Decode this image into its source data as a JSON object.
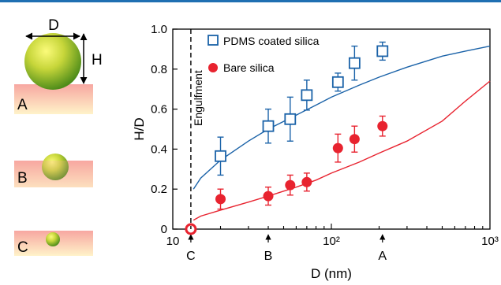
{
  "colors": {
    "accent_bar": "#1f6fb2",
    "pdms": "#1a62a8",
    "bare": "#e8232f",
    "substrate_top": "#f7a7a1",
    "substrate_bottom": "#fff3c9",
    "sphere_light": "#fbfb7a",
    "sphere_dark": "#4c8b19"
  },
  "schematic": {
    "labels": {
      "a": "A",
      "b": "B",
      "c": "C"
    },
    "dimension_d": "D",
    "dimension_h": "H"
  },
  "chart_data": {
    "type": "scatter",
    "ylabel": "H/D",
    "xlabel": "D (nm)",
    "x_scale": "log",
    "xlim": [
      10,
      1000
    ],
    "ylim": [
      0,
      1.0
    ],
    "y_ticks": [
      0,
      0.2,
      0.4,
      0.6,
      0.8,
      1.0
    ],
    "y_tick_labels": [
      "0",
      "0.2",
      "0.4",
      "0.6",
      "0.8",
      "1.0"
    ],
    "x_tick_labels": [
      "10",
      "10²",
      "10³"
    ],
    "grid": false,
    "legend_position": "top-left",
    "engulfment": {
      "x": 13,
      "label": "Engulfment"
    },
    "markers": [
      {
        "x": 13,
        "label": "C"
      },
      {
        "x": 40,
        "label": "B"
      },
      {
        "x": 210,
        "label": "A"
      }
    ],
    "series": [
      {
        "name": "PDMS coated silica",
        "marker": "open-square",
        "points": [
          {
            "x": 20,
            "y": 0.365,
            "err": 0.095
          },
          {
            "x": 40,
            "y": 0.515,
            "err": 0.085
          },
          {
            "x": 55,
            "y": 0.55,
            "err": 0.11
          },
          {
            "x": 70,
            "y": 0.67,
            "err": 0.075
          },
          {
            "x": 110,
            "y": 0.735,
            "err": 0.045
          },
          {
            "x": 140,
            "y": 0.83,
            "err": 0.085
          },
          {
            "x": 210,
            "y": 0.89,
            "err": 0.045
          }
        ],
        "fit": {
          "x": [
            13.5,
            15,
            20,
            30,
            40,
            60,
            80,
            100,
            150,
            200,
            300,
            500,
            700,
            1000
          ],
          "y": [
            0.2,
            0.255,
            0.345,
            0.44,
            0.5,
            0.57,
            0.62,
            0.66,
            0.72,
            0.76,
            0.81,
            0.865,
            0.89,
            0.915
          ]
        }
      },
      {
        "name": "Bare silica",
        "marker": "filled-circle",
        "points": [
          {
            "x": 20,
            "y": 0.15,
            "err": 0.05
          },
          {
            "x": 40,
            "y": 0.165,
            "err": 0.045
          },
          {
            "x": 55,
            "y": 0.22,
            "err": 0.05
          },
          {
            "x": 70,
            "y": 0.235,
            "err": 0.045
          },
          {
            "x": 110,
            "y": 0.405,
            "err": 0.07
          },
          {
            "x": 140,
            "y": 0.45,
            "err": 0.065
          },
          {
            "x": 210,
            "y": 0.515,
            "err": 0.05
          }
        ],
        "fit": {
          "x": [
            13.5,
            15,
            20,
            30,
            40,
            60,
            80,
            100,
            150,
            200,
            300,
            500,
            700,
            1000
          ],
          "y": [
            0.045,
            0.065,
            0.095,
            0.135,
            0.165,
            0.21,
            0.245,
            0.28,
            0.335,
            0.38,
            0.44,
            0.54,
            0.64,
            0.74
          ]
        }
      }
    ],
    "highlight_point": {
      "x": 13,
      "y": 0
    }
  }
}
